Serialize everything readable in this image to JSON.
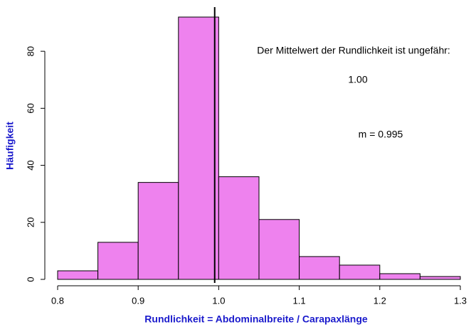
{
  "chart_data": {
    "type": "histogram",
    "xlabel": "Rundlichkeit = Abdominalbreite / Carapaxlänge",
    "ylabel": "Häufigkeit",
    "bins": [
      0.8,
      0.85,
      0.9,
      0.95,
      1.0,
      1.05,
      1.1,
      1.15,
      1.2,
      1.25,
      1.3
    ],
    "values": [
      3,
      13,
      34,
      92,
      36,
      21,
      8,
      5,
      2,
      1
    ],
    "color": "#ee82ee",
    "mean_line": 0.995,
    "annotations": [
      "Der Mittelwert der Rundlichkeit ist ungefähr:",
      "1.00",
      "m = 0.995"
    ],
    "xlim": [
      0.8,
      1.3
    ],
    "xticks": [
      0.8,
      0.9,
      {
        "value": 1,
        "label": "1.0"
      },
      1.1,
      1.2,
      1.3
    ],
    "ylim": [
      0,
      92
    ],
    "yticks": [
      0,
      20,
      40,
      60,
      80
    ]
  }
}
